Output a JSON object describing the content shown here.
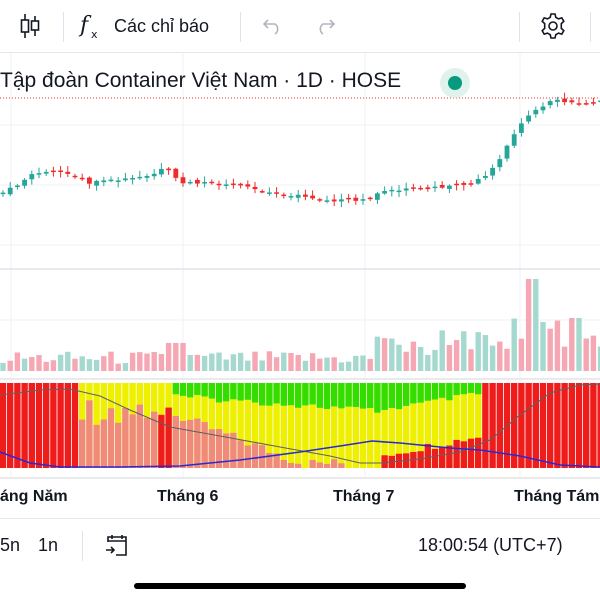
{
  "toolbar": {
    "candles_icon": "candlestick-icon",
    "indicators_label": "Các chỉ báo",
    "function_icon": "fx-icon",
    "undo_icon": "undo-icon",
    "redo_icon": "redo-icon",
    "settings_icon": "gear-icon"
  },
  "header": {
    "title": "Tập đoàn Container Việt Nam · 1D · HOSE",
    "status_color": "#089981"
  },
  "colors": {
    "up": "#26a69a",
    "down": "#ef2b2b",
    "volume_up": "#a5d8cf",
    "volume_down": "#f5a7b3",
    "zone_red": "#ef1c1c",
    "zone_salmon": "#f08a7a",
    "zone_yellow": "#eef000",
    "zone_green": "#33dd00",
    "line_blue": "#2a2ad0",
    "line_grey": "#606060"
  },
  "time_axis": {
    "labels": [
      "áng Năm",
      "Tháng 6",
      "Tháng 7",
      "Tháng Tám"
    ]
  },
  "bottombar": {
    "range_5n": "5n",
    "range_1n": "1n",
    "goto_date_icon": "calendar-goto-icon",
    "clock": "18:00:54 (UTC+7)"
  }
}
